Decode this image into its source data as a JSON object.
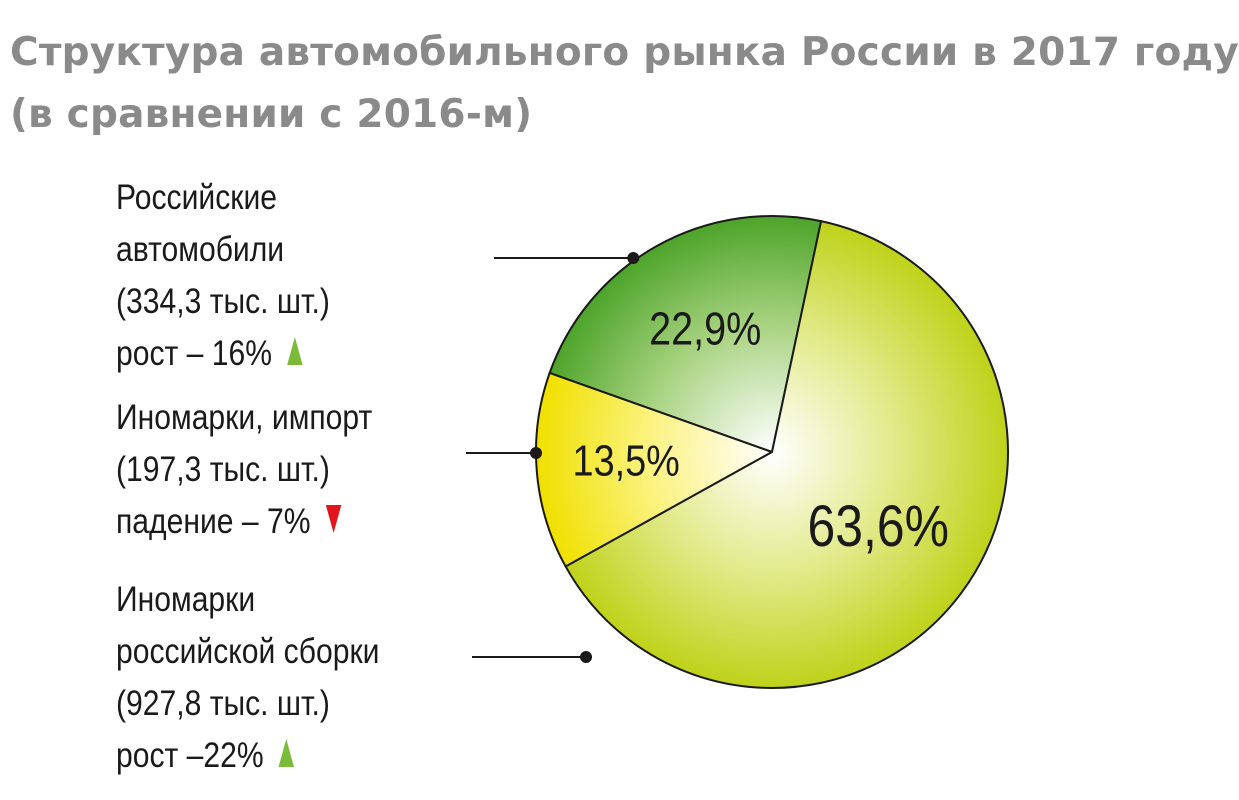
{
  "chart_data": {
    "type": "pie",
    "title_line1": "Структура автомобильного рынка России в 2017 году",
    "title_line2": "(в сравнении с 2016-м)",
    "slices": [
      {
        "value": 22.9,
        "value_label": "22,9%",
        "name_line1": "Российские",
        "name_line2": "автомобили",
        "count": "(334,3 тыс. шт.)",
        "change": "рост – 16%",
        "trend": "up",
        "color": "#5aaa2e"
      },
      {
        "value": 13.5,
        "value_label": "13,5%",
        "name_line1": "Иномарки, импорт",
        "count": "(197,3 тыс. шт.)",
        "change": "падение – 7%",
        "trend": "down",
        "color": "#f2e61c"
      },
      {
        "value": 63.6,
        "value_label": "63,6%",
        "name_line1": "Иномарки",
        "name_line2": "российской сборки",
        "count": "(927,8 тыс. шт.)",
        "change": "рост –22%",
        "trend": "up",
        "color": "#c4d52a"
      }
    ],
    "trend_colors": {
      "up": "#7cba3a",
      "down": "#e3141b"
    }
  }
}
